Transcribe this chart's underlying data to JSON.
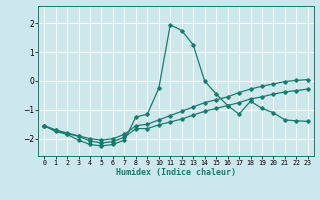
{
  "xlabel": "Humidex (Indice chaleur)",
  "bg_color": "#cce8ec",
  "grid_color": "#ffffff",
  "line_color": "#1a7a6e",
  "x_ticks": [
    0,
    1,
    2,
    3,
    4,
    5,
    6,
    7,
    8,
    9,
    10,
    11,
    12,
    13,
    14,
    15,
    16,
    17,
    18,
    19,
    20,
    21,
    22,
    23
  ],
  "y_ticks": [
    -2,
    -1,
    0,
    1,
    2
  ],
  "xlim": [
    -0.5,
    23.5
  ],
  "ylim": [
    -2.6,
    2.6
  ],
  "lines": [
    {
      "x": [
        0,
        1,
        2,
        3,
        4,
        5,
        6,
        7,
        8,
        9,
        10,
        11,
        12,
        13,
        14,
        15,
        16,
        17,
        18,
        19,
        20,
        21,
        22,
        23
      ],
      "y": [
        -1.55,
        -1.75,
        -1.85,
        -2.05,
        -2.2,
        -2.25,
        -2.2,
        -2.05,
        -1.25,
        -1.15,
        -0.25,
        1.95,
        1.75,
        1.25,
        0.0,
        -0.45,
        -0.85,
        -1.15,
        -0.7,
        -0.95,
        -1.1,
        -1.35,
        -1.38,
        -1.4
      ]
    },
    {
      "x": [
        0,
        1,
        2,
        3,
        4,
        5,
        6,
        7,
        8,
        9,
        10,
        11,
        12,
        13,
        14,
        15,
        16,
        17,
        18,
        19,
        20,
        21,
        22,
        23
      ],
      "y": [
        -1.55,
        -1.7,
        -1.8,
        -1.9,
        -2.0,
        -2.05,
        -2.0,
        -1.85,
        -1.55,
        -1.5,
        -1.35,
        -1.2,
        -1.05,
        -0.9,
        -0.75,
        -0.65,
        -0.55,
        -0.4,
        -0.28,
        -0.18,
        -0.1,
        -0.02,
        0.02,
        0.05
      ]
    },
    {
      "x": [
        0,
        1,
        2,
        3,
        4,
        5,
        6,
        7,
        8,
        9,
        10,
        11,
        12,
        13,
        14,
        15,
        16,
        17,
        18,
        19,
        20,
        21,
        22,
        23
      ],
      "y": [
        -1.55,
        -1.7,
        -1.82,
        -1.92,
        -2.08,
        -2.15,
        -2.1,
        -1.95,
        -1.65,
        -1.65,
        -1.52,
        -1.42,
        -1.32,
        -1.18,
        -1.05,
        -0.95,
        -0.85,
        -0.75,
        -0.62,
        -0.55,
        -0.45,
        -0.38,
        -0.33,
        -0.28
      ]
    }
  ]
}
